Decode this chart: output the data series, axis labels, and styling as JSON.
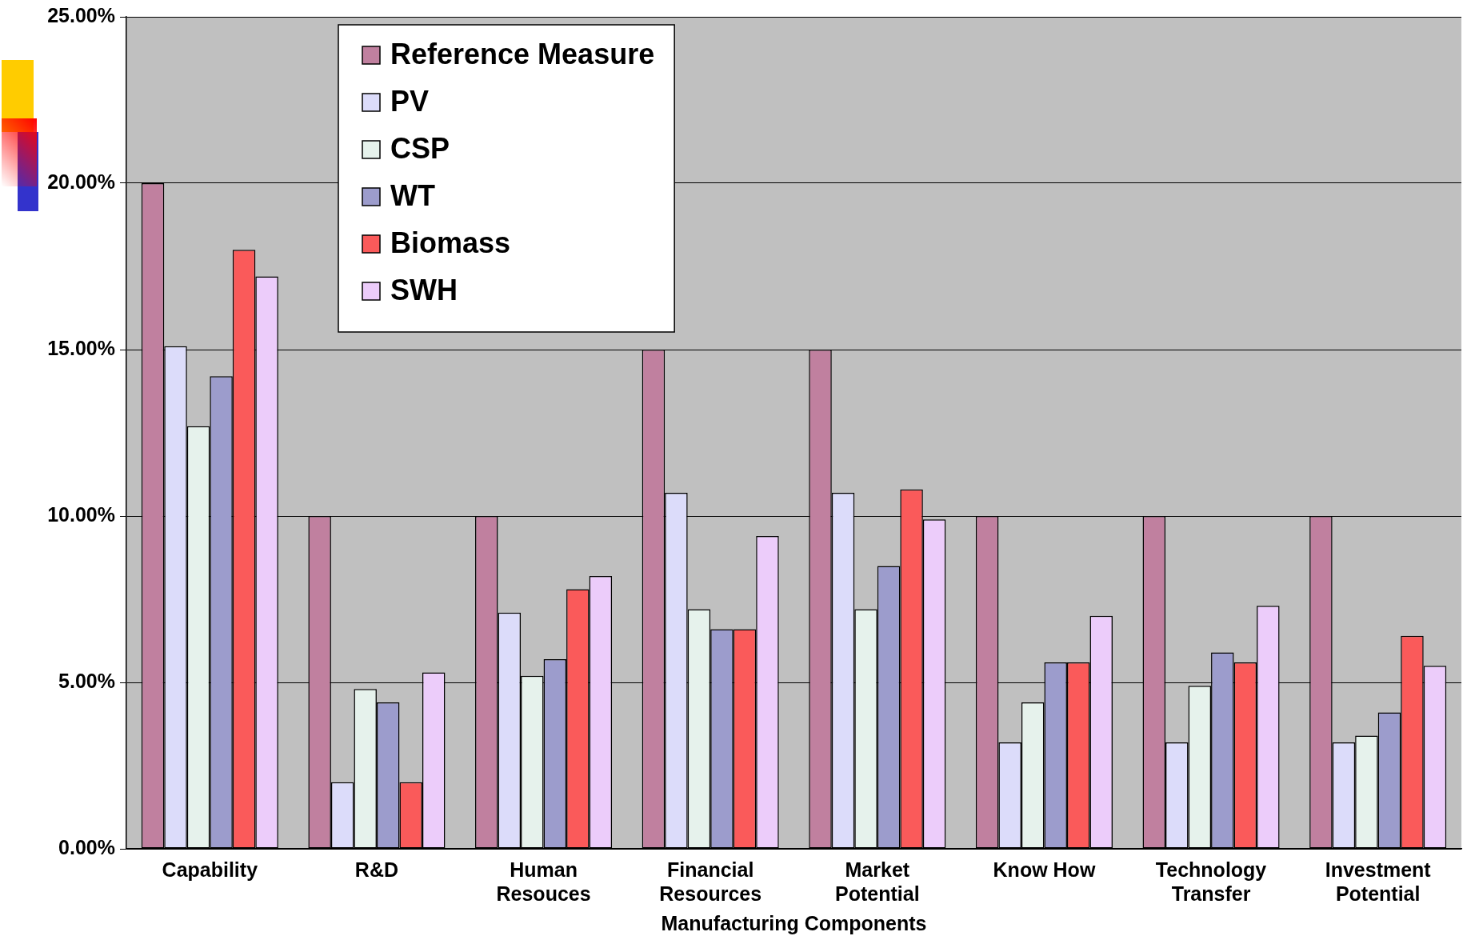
{
  "chart_data": {
    "type": "bar",
    "xlabel": "Manufacturing Components",
    "categories": [
      "Capability",
      "R&D",
      "Human Resouces",
      "Financial Resources",
      "Market Potential",
      "Know How",
      "Technology Transfer",
      "Investment Potential"
    ],
    "series": [
      {
        "name": "Reference Measure",
        "color": "#c0809f",
        "values": [
          20,
          10,
          10,
          15,
          15,
          10,
          10,
          10
        ]
      },
      {
        "name": "PV",
        "color": "#dcdcfa",
        "values": [
          15.1,
          2.0,
          7.1,
          10.7,
          10.7,
          3.2,
          3.2,
          3.2
        ]
      },
      {
        "name": "CSP",
        "color": "#e6f2ec",
        "values": [
          12.7,
          4.8,
          5.2,
          7.2,
          7.2,
          4.4,
          4.9,
          3.4
        ]
      },
      {
        "name": "WT",
        "color": "#9c9ccc",
        "values": [
          14.2,
          4.4,
          5.7,
          6.6,
          8.5,
          5.6,
          5.9,
          4.1
        ]
      },
      {
        "name": "Biomass",
        "color": "#fa5a5a",
        "values": [
          18.0,
          2.0,
          7.8,
          6.6,
          10.8,
          5.6,
          5.6,
          6.4
        ]
      },
      {
        "name": "SWH",
        "color": "#ecccfa",
        "values": [
          17.2,
          5.3,
          8.2,
          9.4,
          9.9,
          7.0,
          7.3,
          5.5
        ]
      }
    ],
    "ylim": [
      0,
      25
    ],
    "yticks": [
      {
        "value": 0,
        "label": "0.00%"
      },
      {
        "value": 5,
        "label": "5.00%"
      },
      {
        "value": 10,
        "label": "10.00%"
      },
      {
        "value": 15,
        "label": "15.00%"
      },
      {
        "value": 20,
        "label": "20.00%"
      },
      {
        "value": 25,
        "label": "25.00%"
      }
    ],
    "grid": "y",
    "legend": "top left"
  }
}
